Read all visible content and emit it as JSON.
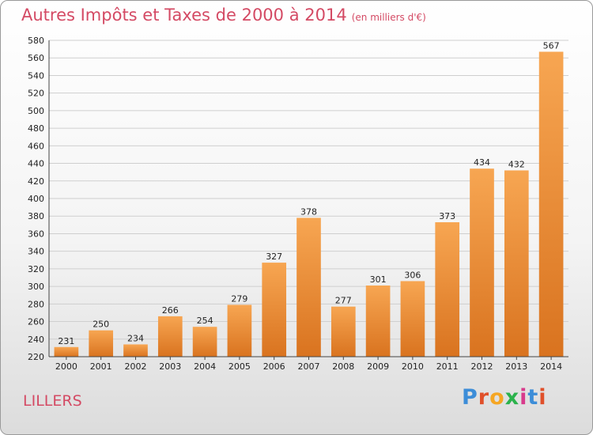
{
  "header": {
    "title": "Autres Impôts et Taxes de 2000 à 2014",
    "unit": "(en milliers d'€)"
  },
  "footer": {
    "city": "LILLERS",
    "logo": "Proxiti"
  },
  "colors": {
    "title": "#d44a64",
    "bar_light": "#f7a652",
    "bar_dark": "#d9731f",
    "logo_letters": [
      "#3c8dd8",
      "#e0502a",
      "#f5a623",
      "#2bb24c",
      "#d83b8c",
      "#3c8dd8",
      "#e0502a"
    ]
  },
  "chart_data": {
    "type": "bar",
    "categories": [
      "2000",
      "2001",
      "2002",
      "2003",
      "2004",
      "2005",
      "2006",
      "2007",
      "2008",
      "2009",
      "2010",
      "2011",
      "2012",
      "2013",
      "2014"
    ],
    "values": [
      231,
      250,
      234,
      266,
      254,
      279,
      327,
      378,
      277,
      301,
      306,
      373,
      434,
      432,
      567
    ],
    "title": "Autres Impôts et Taxes de 2000 à 2014",
    "xlabel": "",
    "ylabel": "",
    "ylim": [
      220,
      580
    ],
    "yticks": [
      220,
      240,
      260,
      280,
      300,
      320,
      340,
      360,
      380,
      400,
      420,
      440,
      460,
      480,
      500,
      520,
      540,
      560,
      580
    ],
    "grid": true,
    "data_labels": true
  }
}
